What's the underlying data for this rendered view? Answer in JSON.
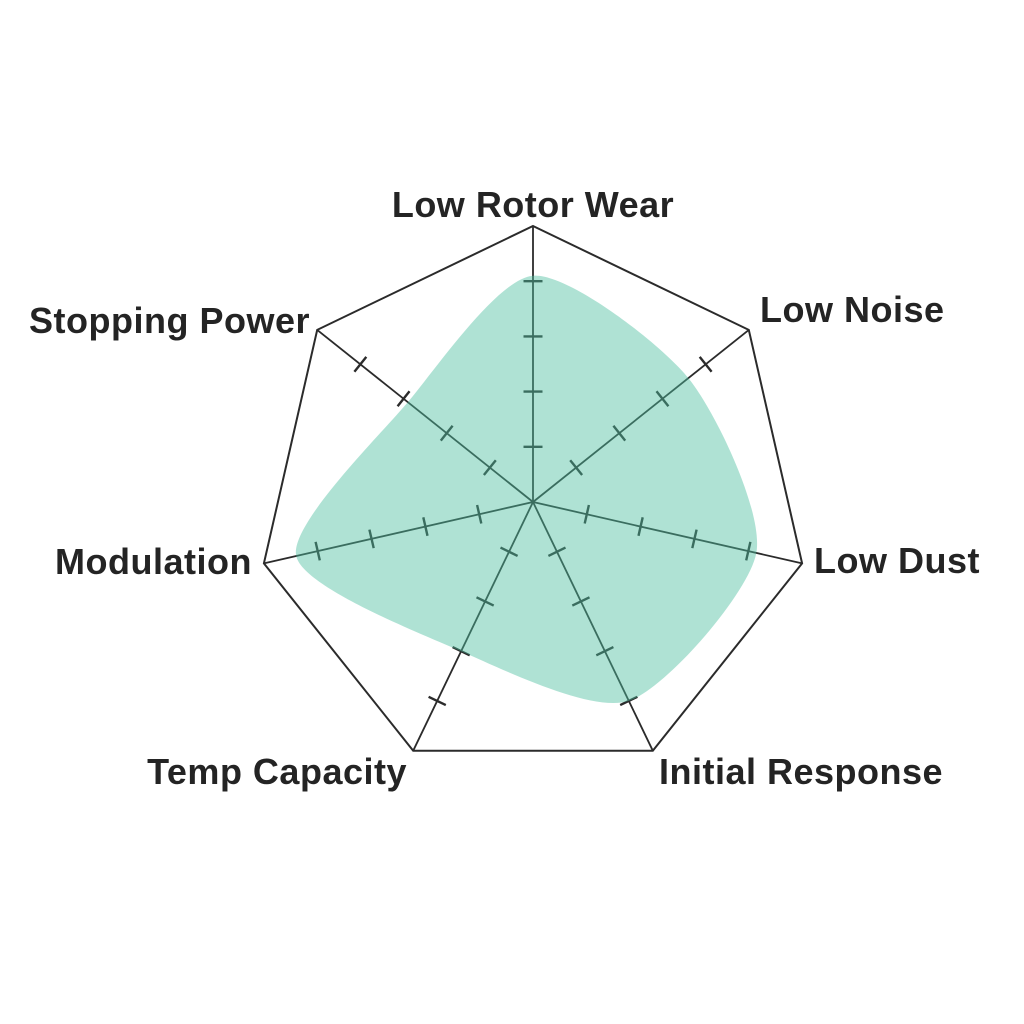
{
  "chart_data": {
    "type": "radar",
    "categories": [
      "Low Rotor Wear",
      "Low Noise",
      "Low Dust",
      "Initial Response",
      "Temp Capacity",
      "Modulation",
      "Stopping Power"
    ],
    "values": [
      4.1,
      3.6,
      4.15,
      4.0,
      3.0,
      4.4,
      2.9
    ],
    "scale": {
      "min": 0,
      "max": 5,
      "tick_step": 1,
      "inner_ticks": [
        1,
        2,
        3,
        4
      ],
      "tick_labels_shown": false
    },
    "legend": "none",
    "grid": "spokes-with-ticks-and-outer-polygon",
    "colors": {
      "series_fill": "rgba(77,190,160,0.45)",
      "axis_line": "#2b2b2b",
      "label_text": "#242424",
      "background": "#ffffff"
    }
  }
}
